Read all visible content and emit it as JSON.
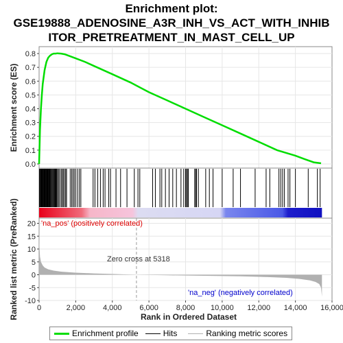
{
  "title_line1": "Enrichment plot:",
  "title_line2": "GSE19888_ADENOSINE_A3R_INH_VS_ACT_WITH_INHIB",
  "title_line3": "ITOR_PRETREATMENT_IN_MAST_CELL_UP",
  "legend": {
    "enrichment_profile": "Enrichment profile",
    "hits": "Hits",
    "ranking_metric": "Ranking metric scores"
  },
  "colors": {
    "enrichment": "#00dd00",
    "hits": "#000000",
    "metric": "#b0b0b0",
    "pos_label": "#dd0000",
    "neg_label": "#0000cc"
  },
  "chart_data": [
    {
      "type": "line",
      "panel": "enrichment-score",
      "ylabel": "Enrichment score (ES)",
      "xlim": [
        0,
        16000
      ],
      "ylim": [
        -0.03,
        0.85
      ],
      "yticks": [
        0.0,
        0.1,
        0.2,
        0.3,
        0.4,
        0.5,
        0.6,
        0.7,
        0.8
      ],
      "ytick_labels": [
        "0.0",
        "0.1",
        "0.2",
        "0.3",
        "0.4",
        "0.5",
        "0.6",
        "0.7",
        "0.8"
      ],
      "series": [
        {
          "x": [
            0,
            50,
            100,
            150,
            200,
            300,
            400,
            500,
            600,
            700,
            800,
            900,
            1000,
            1200,
            1400,
            1600,
            2000,
            2500,
            3000,
            4000,
            5000,
            6000,
            7000,
            8000,
            9000,
            10000,
            11000,
            12000,
            13000,
            14000,
            14500,
            15000,
            15400
          ],
          "y": [
            0.0,
            0.25,
            0.4,
            0.5,
            0.58,
            0.68,
            0.74,
            0.77,
            0.785,
            0.795,
            0.8,
            0.8,
            0.802,
            0.8,
            0.795,
            0.785,
            0.765,
            0.74,
            0.71,
            0.65,
            0.59,
            0.52,
            0.46,
            0.4,
            0.34,
            0.28,
            0.22,
            0.16,
            0.1,
            0.06,
            0.035,
            0.012,
            0.005
          ]
        }
      ],
      "grid": true
    },
    {
      "type": "scatter",
      "panel": "hits",
      "xlim": [
        0,
        16000
      ],
      "hits_x": [
        20,
        60,
        90,
        120,
        150,
        180,
        210,
        240,
        270,
        300,
        330,
        360,
        390,
        420,
        450,
        480,
        510,
        540,
        570,
        600,
        640,
        680,
        720,
        760,
        800,
        840,
        880,
        920,
        960,
        1000,
        1060,
        1120,
        1200,
        1260,
        1320,
        1380,
        1450,
        1500,
        1700,
        1780,
        1850,
        1920,
        2000,
        2100,
        2200,
        2280,
        2950,
        3050,
        3200,
        3350,
        3500,
        3600,
        3800,
        3900,
        4200,
        4450,
        4800,
        5200,
        5400,
        5500,
        6200,
        6350,
        6600,
        6700,
        6900,
        7100,
        7300,
        7500,
        7750,
        7900,
        8000,
        8050,
        8100,
        8150,
        8500,
        8550,
        8600,
        8700,
        9100,
        9300,
        9500,
        10000,
        10600,
        11000,
        11800,
        12400,
        12600,
        13100,
        13200,
        13300,
        13400,
        13600,
        13700,
        14000,
        14700,
        15200,
        15350
      ]
    },
    {
      "type": "area",
      "panel": "ranked-list-metric",
      "ylabel": "Ranked list metric (PreRanked)",
      "xlabel": "Rank in Ordered Dataset",
      "xlim": [
        0,
        16000
      ],
      "ylim": [
        -10,
        22
      ],
      "xticks": [
        0,
        2000,
        4000,
        6000,
        8000,
        10000,
        12000,
        14000,
        16000
      ],
      "xtick_labels": [
        "0",
        "2,000",
        "4,000",
        "6,000",
        "8,000",
        "10,000",
        "12,000",
        "14,000",
        "16,000"
      ],
      "yticks": [
        -10,
        -5,
        0,
        5,
        10,
        15,
        20
      ],
      "ytick_labels": [
        "-10",
        "-5",
        "0",
        "5",
        "10",
        "15",
        "20"
      ],
      "x": [
        0,
        20,
        50,
        100,
        200,
        300,
        500,
        800,
        1200,
        2000,
        3000,
        4000,
        5318,
        7000,
        9000,
        11000,
        12500,
        13500,
        14200,
        14800,
        15100,
        15300,
        15400,
        15450
      ],
      "values": [
        20,
        11,
        7,
        5,
        3.6,
        2.8,
        2.1,
        1.6,
        1.2,
        0.8,
        0.5,
        0.3,
        0.0,
        -0.2,
        -0.4,
        -0.6,
        -0.9,
        -1.2,
        -1.6,
        -2.2,
        -2.8,
        -3.6,
        -5,
        -8.5
      ],
      "zero_cross_label": "Zero cross at 5318",
      "zero_cross_x": 5318,
      "pos_label": "'na_pos' (positively correlated)",
      "neg_label": "'na_neg' (negatively correlated)"
    }
  ]
}
